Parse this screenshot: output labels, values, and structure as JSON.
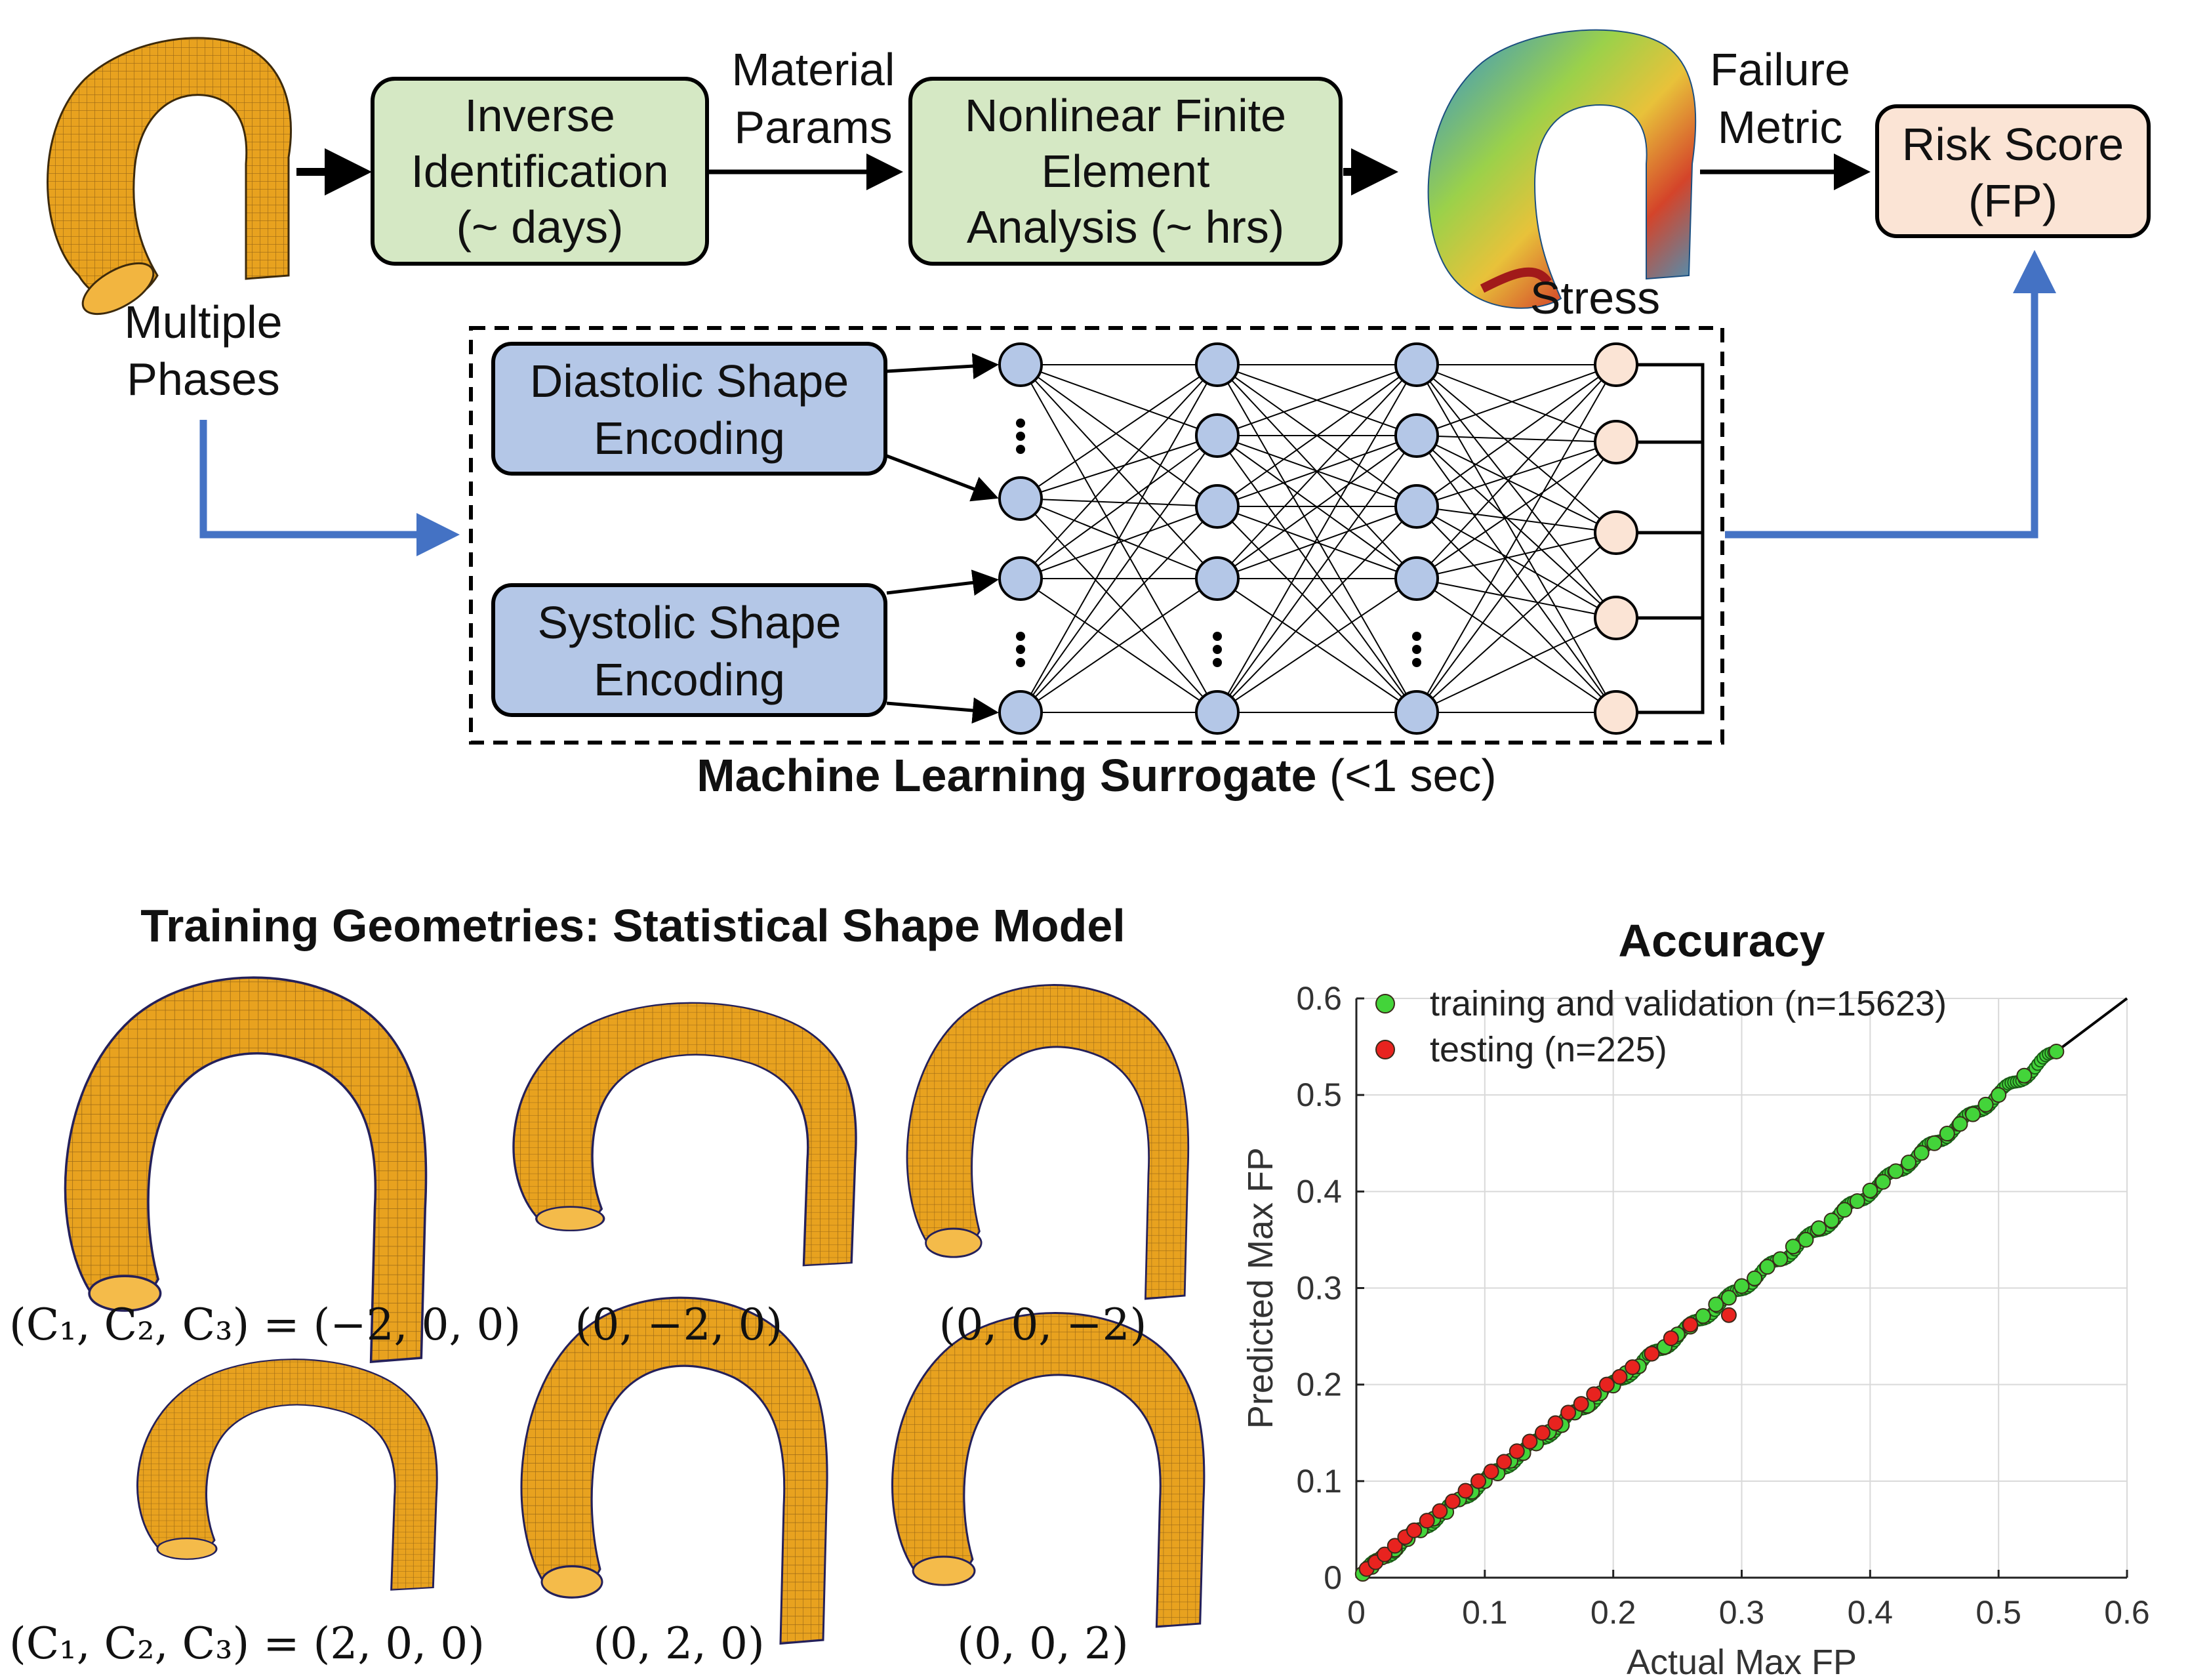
{
  "pipeline": {
    "multiple_phases": [
      "Multiple",
      "Phases"
    ],
    "inverse_box": [
      "Inverse",
      "Identification",
      "(~ days)"
    ],
    "material_params": [
      "Material",
      "Params"
    ],
    "fea_box": [
      "Nonlinear Finite",
      "Element",
      "Analysis (~ hrs)"
    ],
    "stress": "Stress",
    "failure_metric": [
      "Failure",
      "Metric"
    ],
    "risk_box": [
      "Risk Score",
      "(FP)"
    ]
  },
  "surrogate": {
    "diastolic": [
      "Diastolic Shape",
      "Encoding"
    ],
    "systolic": [
      "Systolic Shape",
      "Encoding"
    ],
    "caption_bold": "Machine Learning Surrogate",
    "caption_rest": " (<1 sec)"
  },
  "ssm": {
    "title": "Training Geometries: Statistical Shape Model",
    "row1": [
      "(−2, 0, 0)",
      "(0, −2, 0)",
      "(0, 0, −2)"
    ],
    "row2": [
      "(2, 0, 0)",
      "(0, 2, 0)",
      "(0, 0, 2)"
    ],
    "eq_prefix": "(C₁, C₂, C₃) = "
  },
  "colors": {
    "green_box": "#d5e8c4",
    "blue_box": "#b4c7e7",
    "peach": "#fbe4d5",
    "blue_arrow": "#4472c4",
    "mesh": "#e8a21f",
    "green_pts": "#43d43a",
    "red_pts": "#e8231f"
  },
  "chart_data": {
    "type": "scatter",
    "title": "Accuracy",
    "xlabel": "Actual Max FP",
    "ylabel": "Predicted Max FP",
    "xlim": [
      0,
      0.6
    ],
    "ylim": [
      0,
      0.6
    ],
    "xticks": [
      "0",
      "0.1",
      "0.2",
      "0.3",
      "0.4",
      "0.5",
      "0.6"
    ],
    "yticks": [
      "0",
      "0.1",
      "0.2",
      "0.3",
      "0.4",
      "0.5",
      "0.6"
    ],
    "grid": true,
    "legend_position": "top-left",
    "reference_line": [
      [
        0,
        0
      ],
      [
        0.6,
        0.6
      ]
    ],
    "series": [
      {
        "name": "training and validation (n=15623)",
        "color": "#43d43a",
        "points": [
          [
            0.005,
            0.004
          ],
          [
            0.012,
            0.011
          ],
          [
            0.02,
            0.021
          ],
          [
            0.03,
            0.029
          ],
          [
            0.04,
            0.04
          ],
          [
            0.05,
            0.049
          ],
          [
            0.06,
            0.061
          ],
          [
            0.07,
            0.068
          ],
          [
            0.08,
            0.081
          ],
          [
            0.09,
            0.089
          ],
          [
            0.1,
            0.1
          ],
          [
            0.11,
            0.108
          ],
          [
            0.12,
            0.121
          ],
          [
            0.13,
            0.129
          ],
          [
            0.14,
            0.139
          ],
          [
            0.15,
            0.151
          ],
          [
            0.16,
            0.158
          ],
          [
            0.17,
            0.171
          ],
          [
            0.18,
            0.178
          ],
          [
            0.19,
            0.191
          ],
          [
            0.2,
            0.199
          ],
          [
            0.21,
            0.212
          ],
          [
            0.22,
            0.219
          ],
          [
            0.23,
            0.232
          ],
          [
            0.24,
            0.239
          ],
          [
            0.25,
            0.252
          ],
          [
            0.26,
            0.26
          ],
          [
            0.27,
            0.271
          ],
          [
            0.28,
            0.283
          ],
          [
            0.29,
            0.29
          ],
          [
            0.3,
            0.302
          ],
          [
            0.31,
            0.31
          ],
          [
            0.32,
            0.322
          ],
          [
            0.33,
            0.33
          ],
          [
            0.34,
            0.343
          ],
          [
            0.35,
            0.35
          ],
          [
            0.36,
            0.362
          ],
          [
            0.37,
            0.37
          ],
          [
            0.38,
            0.381
          ],
          [
            0.39,
            0.39
          ],
          [
            0.4,
            0.401
          ],
          [
            0.41,
            0.41
          ],
          [
            0.42,
            0.421
          ],
          [
            0.43,
            0.43
          ],
          [
            0.44,
            0.44
          ],
          [
            0.45,
            0.45
          ],
          [
            0.46,
            0.46
          ],
          [
            0.47,
            0.47
          ],
          [
            0.48,
            0.48
          ],
          [
            0.49,
            0.49
          ],
          [
            0.5,
            0.5
          ],
          [
            0.52,
            0.52
          ],
          [
            0.545,
            0.545
          ]
        ]
      },
      {
        "name": "testing (n=225)",
        "color": "#e8231f",
        "points": [
          [
            0.008,
            0.009
          ],
          [
            0.015,
            0.016
          ],
          [
            0.022,
            0.024
          ],
          [
            0.03,
            0.033
          ],
          [
            0.038,
            0.042
          ],
          [
            0.045,
            0.049
          ],
          [
            0.055,
            0.059
          ],
          [
            0.065,
            0.069
          ],
          [
            0.075,
            0.079
          ],
          [
            0.085,
            0.09
          ],
          [
            0.095,
            0.1
          ],
          [
            0.105,
            0.11
          ],
          [
            0.115,
            0.12
          ],
          [
            0.125,
            0.131
          ],
          [
            0.135,
            0.141
          ],
          [
            0.145,
            0.15
          ],
          [
            0.155,
            0.16
          ],
          [
            0.165,
            0.171
          ],
          [
            0.175,
            0.18
          ],
          [
            0.185,
            0.19
          ],
          [
            0.195,
            0.2
          ],
          [
            0.205,
            0.208
          ],
          [
            0.215,
            0.218
          ],
          [
            0.23,
            0.232
          ],
          [
            0.245,
            0.248
          ],
          [
            0.26,
            0.262
          ],
          [
            0.29,
            0.272
          ]
        ]
      }
    ]
  }
}
